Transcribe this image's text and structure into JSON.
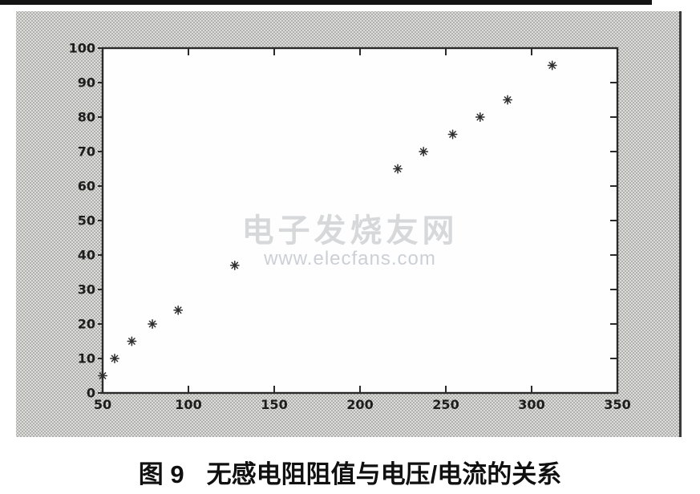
{
  "scan": {
    "top_bar_color": "#141414",
    "panel_edge_color": "#3b3b3b"
  },
  "watermark": {
    "line1": "电子发烧友网",
    "line2": "www.elecfans.com",
    "color_cn": "#d7d8da",
    "color_url": "#ccd0d6"
  },
  "caption": {
    "figure_label": "图 9",
    "text": "无感电阻阻值与电压/电流的关系"
  },
  "chart_data": {
    "type": "scatter",
    "title": "",
    "xlabel": "",
    "ylabel": "",
    "grid": false,
    "marker": "asterisk",
    "marker_color": "#2e2e2e",
    "axis_color": "#2a2a2a",
    "plot_bg": "#fefefe",
    "xlim": [
      50,
      350
    ],
    "ylim": [
      0,
      100
    ],
    "xticks": [
      50,
      100,
      150,
      200,
      250,
      300,
      350
    ],
    "yticks": [
      0,
      10,
      20,
      30,
      40,
      50,
      60,
      70,
      80,
      90,
      100
    ],
    "points": [
      [
        50,
        5
      ],
      [
        57,
        10
      ],
      [
        67,
        15
      ],
      [
        79,
        20
      ],
      [
        94,
        24
      ],
      [
        127,
        37
      ],
      [
        222,
        65
      ],
      [
        237,
        70
      ],
      [
        254,
        75
      ],
      [
        270,
        80
      ],
      [
        286,
        85
      ],
      [
        312,
        95
      ]
    ]
  }
}
